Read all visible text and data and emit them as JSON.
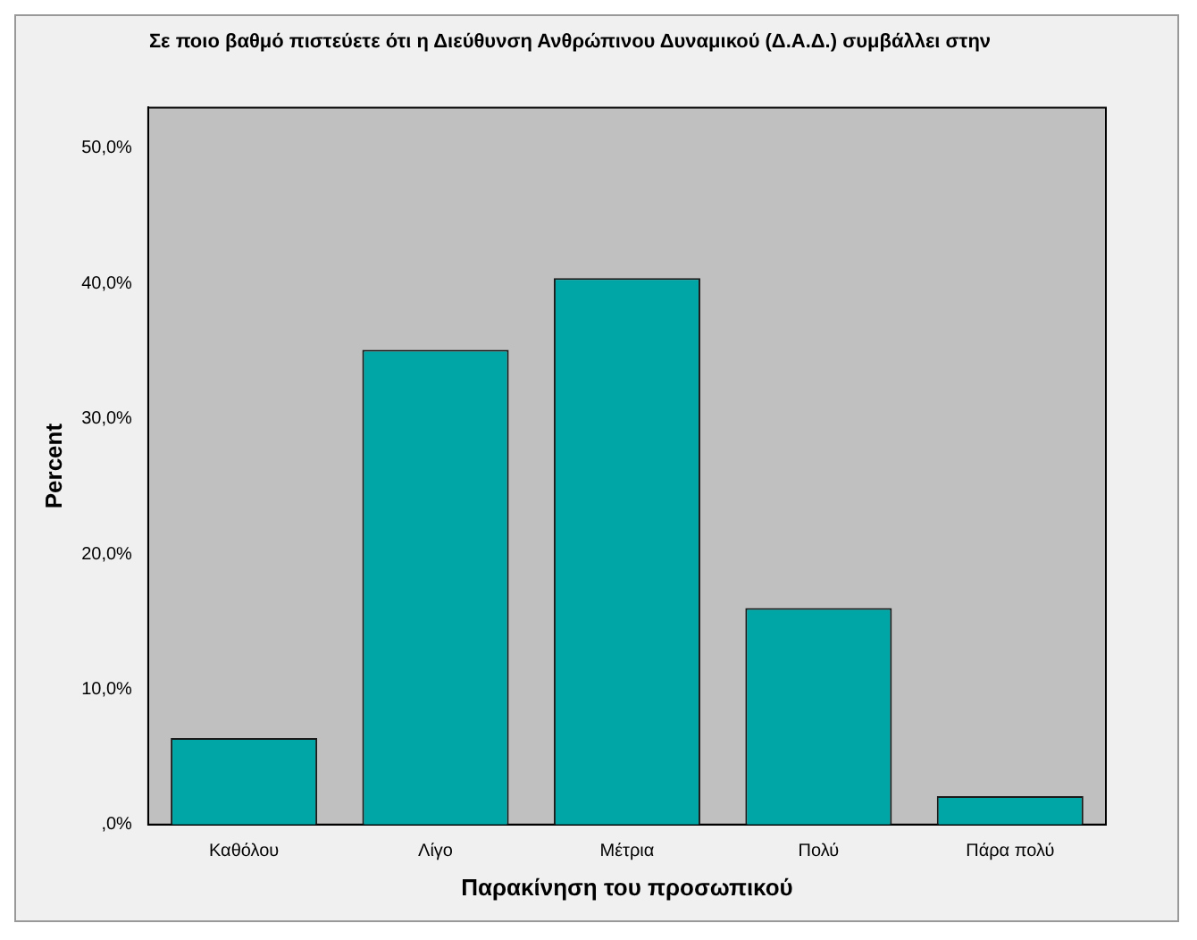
{
  "chart_data": {
    "type": "bar",
    "title": "Σε ποιο βαθμό πιστεύετε ότι η Διεύθυνση Ανθρώπινου Δυναμικού (Δ.Α.Δ.) συμβάλλει στην",
    "xlabel": "Παρακίνηση του προσωπικού",
    "ylabel": "Percent",
    "categories": [
      "Καθόλου",
      "Λίγο",
      "Μέτρια",
      "Πολύ",
      "Πάρα πολύ"
    ],
    "values": [
      6.4,
      35.1,
      40.4,
      16.0,
      2.1
    ],
    "color": "#00a6a6",
    "ylim": [
      0,
      53
    ],
    "yticks": [
      {
        "value": 0,
        "label": ",0%"
      },
      {
        "value": 10,
        "label": "10,0%"
      },
      {
        "value": 20,
        "label": "20,0%"
      },
      {
        "value": 30,
        "label": "30,0%"
      },
      {
        "value": 40,
        "label": "40,0%"
      },
      {
        "value": 50,
        "label": "50,0%"
      }
    ],
    "grid": false
  }
}
